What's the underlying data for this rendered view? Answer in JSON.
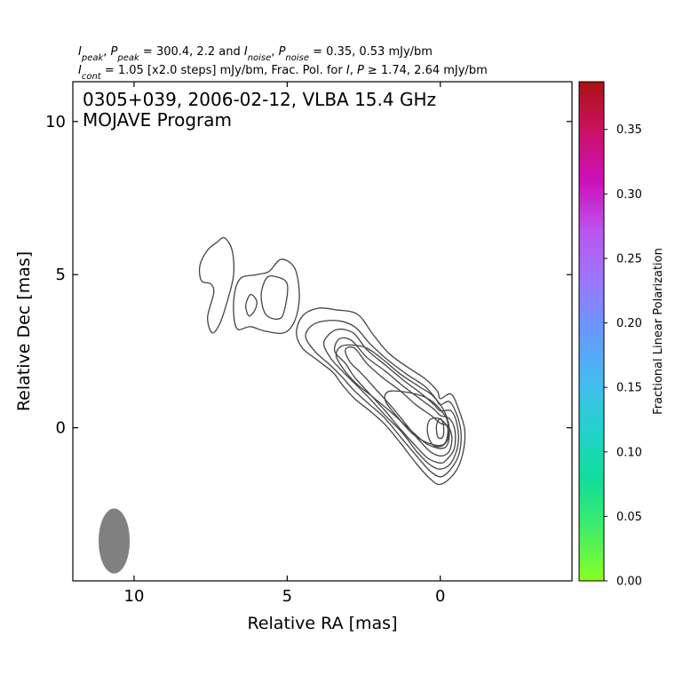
{
  "chart_data": {
    "type": "contour",
    "header_lines": [
      [
        {
          "t": "I",
          "i": true
        },
        {
          "t": "peak",
          "sub": true,
          "i": true
        },
        {
          "t": ", "
        },
        {
          "t": "P",
          "i": true
        },
        {
          "t": "peak",
          "sub": true,
          "i": true
        },
        {
          "t": " = 300.4, 2.2 and "
        },
        {
          "t": "I",
          "i": true
        },
        {
          "t": "noise",
          "sub": true,
          "i": true
        },
        {
          "t": ", "
        },
        {
          "t": "P",
          "i": true
        },
        {
          "t": "noise",
          "sub": true,
          "i": true
        },
        {
          "t": " = 0.35, 0.53 mJy/bm"
        }
      ],
      [
        {
          "t": "I",
          "i": true
        },
        {
          "t": "cont",
          "sub": true,
          "i": true
        },
        {
          "t": " = 1.05 [x2.0 steps] mJy/bm, Frac. Pol. for "
        },
        {
          "t": "I",
          "i": true
        },
        {
          "t": ", "
        },
        {
          "t": "P",
          "i": true
        },
        {
          "t": " ≥ 1.74, 2.64 mJy/bm"
        }
      ]
    ],
    "annotation_lines": [
      "0305+039, 2006-02-12, VLBA 15.4 GHz",
      "MOJAVE Program"
    ],
    "xlabel": "Relative RA [mas]",
    "ylabel": "Relative Dec [mas]",
    "xlim": [
      12.0,
      -4.3
    ],
    "ylim": [
      -5.0,
      11.3
    ],
    "xticks": [
      10,
      5,
      0
    ],
    "yticks": [
      0,
      5,
      10
    ],
    "colorbar": {
      "label": "Fractional Linear Polarization",
      "range": [
        0.0,
        0.387
      ],
      "ticks": [
        "0.00",
        "0.05",
        "0.10",
        "0.15",
        "0.20",
        "0.25",
        "0.30",
        "0.35"
      ],
      "colors": [
        "#88ff22",
        "#44ee66",
        "#11dd99",
        "#22d2cc",
        "#44bbee",
        "#6699ff",
        "#9977ff",
        "#bb55ee",
        "#cc11bb",
        "#cc1166",
        "#aa1111"
      ]
    },
    "contour_color": "#444444",
    "beam": {
      "x": 10.65,
      "y": -3.7,
      "width_mas": 0.55,
      "height_mas": 1.25,
      "color": "#808080"
    },
    "contours": [
      {
        "level": "1.05",
        "polygons": [
          [
            [
              0.0,
              0.95
            ],
            [
              -0.35,
              1.1
            ],
            [
              -0.6,
              0.6
            ],
            [
              -0.8,
              -0.1
            ],
            [
              -0.72,
              -0.9
            ],
            [
              -0.45,
              -1.5
            ],
            [
              0.0,
              -1.85
            ],
            [
              0.35,
              -1.65
            ],
            [
              0.8,
              -1.15
            ],
            [
              1.3,
              -0.5
            ],
            [
              1.8,
              0.1
            ],
            [
              2.3,
              0.55
            ],
            [
              2.8,
              0.95
            ],
            [
              3.2,
              1.4
            ],
            [
              3.5,
              1.8
            ],
            [
              4.0,
              2.2
            ],
            [
              4.5,
              2.6
            ],
            [
              4.7,
              3.1
            ],
            [
              4.5,
              3.65
            ],
            [
              4.0,
              3.9
            ],
            [
              3.4,
              3.85
            ],
            [
              2.7,
              3.7
            ],
            [
              2.2,
              3.05
            ],
            [
              1.7,
              2.45
            ],
            [
              1.1,
              2.0
            ],
            [
              0.5,
              1.6
            ],
            [
              0.1,
              1.2
            ]
          ],
          [
            [
              5.6,
              5.1
            ],
            [
              5.2,
              5.5
            ],
            [
              4.75,
              5.2
            ],
            [
              4.6,
              4.3
            ],
            [
              4.75,
              3.5
            ],
            [
              5.1,
              3.1
            ],
            [
              5.7,
              3.15
            ],
            [
              6.2,
              3.3
            ],
            [
              6.65,
              3.25
            ],
            [
              6.75,
              4.1
            ],
            [
              6.55,
              4.85
            ],
            [
              6.0,
              5.0
            ]
          ],
          [
            [
              7.05,
              6.2
            ],
            [
              6.8,
              5.8
            ],
            [
              6.75,
              5.0
            ],
            [
              6.95,
              4.15
            ],
            [
              7.2,
              3.4
            ],
            [
              7.45,
              3.1
            ],
            [
              7.6,
              3.6
            ],
            [
              7.4,
              4.4
            ],
            [
              7.5,
              4.7
            ],
            [
              7.8,
              4.8
            ],
            [
              7.85,
              5.3
            ],
            [
              7.6,
              5.8
            ],
            [
              7.3,
              6.05
            ]
          ]
        ]
      },
      {
        "level": "2.1",
        "polygons": [
          [
            [
              0.0,
              0.75
            ],
            [
              -0.3,
              0.85
            ],
            [
              -0.55,
              0.4
            ],
            [
              -0.68,
              -0.2
            ],
            [
              -0.6,
              -0.9
            ],
            [
              -0.3,
              -1.4
            ],
            [
              0.0,
              -1.6
            ],
            [
              0.35,
              -1.4
            ],
            [
              0.75,
              -0.95
            ],
            [
              1.3,
              -0.3
            ],
            [
              1.8,
              0.3
            ],
            [
              2.3,
              0.75
            ],
            [
              2.8,
              1.2
            ],
            [
              3.2,
              1.65
            ],
            [
              3.6,
              2.05
            ],
            [
              4.1,
              2.5
            ],
            [
              4.4,
              3.0
            ],
            [
              4.1,
              3.4
            ],
            [
              3.4,
              3.5
            ],
            [
              2.8,
              3.3
            ],
            [
              2.3,
              2.75
            ],
            [
              1.7,
              2.2
            ],
            [
              1.1,
              1.75
            ],
            [
              0.5,
              1.35
            ],
            [
              0.15,
              0.95
            ]
          ],
          [
            [
              5.45,
              4.95
            ],
            [
              5.0,
              4.7
            ],
            [
              5.1,
              3.8
            ],
            [
              5.3,
              3.55
            ],
            [
              5.7,
              3.7
            ],
            [
              5.85,
              4.3
            ],
            [
              5.7,
              4.85
            ]
          ],
          [
            [
              6.0,
              4.15
            ],
            [
              6.2,
              4.35
            ],
            [
              6.35,
              4.0
            ],
            [
              6.25,
              3.65
            ],
            [
              6.05,
              3.85
            ]
          ]
        ]
      },
      {
        "level": "4.2",
        "polygons": [
          [
            [
              0.0,
              0.55
            ],
            [
              -0.35,
              0.55
            ],
            [
              -0.55,
              0.1
            ],
            [
              -0.58,
              -0.55
            ],
            [
              -0.35,
              -1.15
            ],
            [
              0.0,
              -1.35
            ],
            [
              0.35,
              -1.2
            ],
            [
              0.75,
              -0.8
            ],
            [
              1.25,
              -0.15
            ],
            [
              1.8,
              0.4
            ],
            [
              2.3,
              0.95
            ],
            [
              2.8,
              1.45
            ],
            [
              3.2,
              1.85
            ],
            [
              3.6,
              2.3
            ],
            [
              3.8,
              2.8
            ],
            [
              3.4,
              3.2
            ],
            [
              2.85,
              3.1
            ],
            [
              2.4,
              2.55
            ],
            [
              1.8,
              2.05
            ],
            [
              1.2,
              1.55
            ],
            [
              0.6,
              1.1
            ],
            [
              0.2,
              0.75
            ]
          ]
        ]
      },
      {
        "level": "8.4",
        "polygons": [
          [
            [
              0.0,
              0.4
            ],
            [
              -0.3,
              0.3
            ],
            [
              -0.48,
              -0.1
            ],
            [
              -0.45,
              -0.7
            ],
            [
              -0.2,
              -1.05
            ],
            [
              0.0,
              -1.15
            ],
            [
              0.4,
              -1.0
            ],
            [
              0.8,
              -0.6
            ],
            [
              1.3,
              -0.05
            ],
            [
              1.8,
              0.55
            ],
            [
              2.3,
              1.1
            ],
            [
              2.8,
              1.65
            ],
            [
              3.1,
              2.1
            ],
            [
              3.45,
              2.5
            ],
            [
              3.3,
              2.9
            ],
            [
              2.9,
              2.85
            ],
            [
              2.4,
              2.3
            ],
            [
              1.8,
              1.85
            ],
            [
              1.2,
              1.35
            ],
            [
              0.6,
              0.9
            ],
            [
              0.2,
              0.6
            ]
          ]
        ]
      },
      {
        "level": "16.8",
        "polygons": [
          [
            [
              0.0,
              0.15
            ],
            [
              -0.25,
              0.05
            ],
            [
              -0.38,
              -0.3
            ],
            [
              -0.3,
              -0.75
            ],
            [
              -0.05,
              -0.92
            ],
            [
              0.3,
              -0.8
            ],
            [
              0.7,
              -0.4
            ],
            [
              1.15,
              0.15
            ],
            [
              1.6,
              0.7
            ],
            [
              2.1,
              1.25
            ],
            [
              2.55,
              1.75
            ],
            [
              2.95,
              2.15
            ],
            [
              3.1,
              2.55
            ],
            [
              2.8,
              2.6
            ],
            [
              2.4,
              2.1
            ],
            [
              1.9,
              1.65
            ],
            [
              1.3,
              1.2
            ],
            [
              0.8,
              0.75
            ],
            [
              0.3,
              0.4
            ]
          ]
        ]
      },
      {
        "level": "33.6",
        "polygons": [
          [
            [
              0.25,
              1.05
            ],
            [
              -0.15,
              0.5
            ],
            [
              -0.3,
              -0.15
            ],
            [
              -0.15,
              -0.65
            ],
            [
              0.4,
              -0.55
            ],
            [
              1.0,
              -0.05
            ],
            [
              1.6,
              0.5
            ],
            [
              2.2,
              1.0
            ],
            [
              2.75,
              1.45
            ],
            [
              3.15,
              1.9
            ],
            [
              3.4,
              2.35
            ],
            [
              3.25,
              2.65
            ],
            [
              2.85,
              2.7
            ],
            [
              2.4,
              2.6
            ],
            [
              1.9,
              2.25
            ],
            [
              1.3,
              1.75
            ],
            [
              0.7,
              1.35
            ]
          ]
        ]
      },
      {
        "level": "67.2",
        "polygons": [
          [
            [
              0.5,
              1.0
            ],
            [
              -0.15,
              0.4
            ],
            [
              -0.25,
              -0.1
            ],
            [
              -0.1,
              -0.55
            ],
            [
              0.4,
              -0.5
            ],
            [
              0.9,
              -0.2
            ],
            [
              1.4,
              0.35
            ],
            [
              1.8,
              0.9
            ],
            [
              1.6,
              1.2
            ]
          ]
        ]
      },
      {
        "level": "134.4",
        "polygons": [
          [
            [
              0.05,
              0.3
            ],
            [
              -0.22,
              0.05
            ],
            [
              -0.25,
              -0.35
            ],
            [
              -0.05,
              -0.6
            ],
            [
              0.25,
              -0.55
            ],
            [
              0.42,
              -0.15
            ],
            [
              0.35,
              0.25
            ]
          ]
        ]
      },
      {
        "level": "268.8",
        "polygons": [
          [
            [
              0.0,
              0.3
            ],
            [
              -0.1,
              0.1
            ],
            [
              -0.1,
              -0.25
            ],
            [
              0.0,
              -0.35
            ],
            [
              0.1,
              -0.25
            ],
            [
              0.12,
              0.1
            ]
          ]
        ]
      }
    ]
  }
}
